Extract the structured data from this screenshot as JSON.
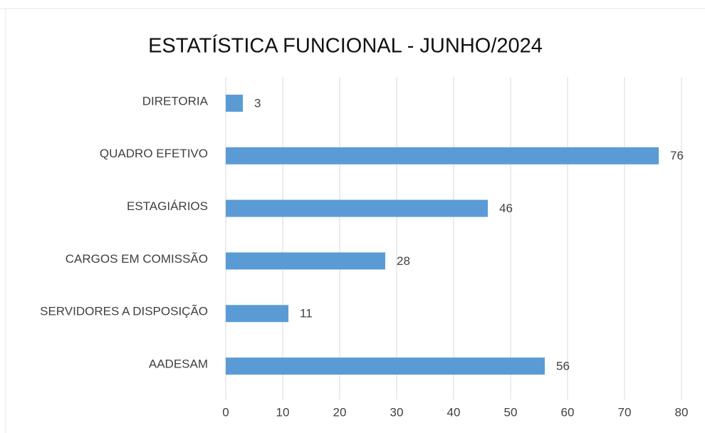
{
  "chart_data": {
    "type": "bar",
    "orientation": "horizontal",
    "title": "ESTATÍSTICA FUNCIONAL - JUNHO/2024",
    "categories": [
      "DIRETORIA",
      "QUADRO EFETIVO",
      "ESTAGIÁRIOS",
      "CARGOS EM COMISSÃO",
      "SERVIDORES A DISPOSIÇÃO",
      "AADESAM"
    ],
    "values": [
      3,
      76,
      46,
      28,
      11,
      56
    ],
    "color": "#5b9bd5",
    "xlim": [
      0,
      80
    ],
    "xticks": [
      0,
      10,
      20,
      30,
      40,
      50,
      60,
      70,
      80
    ],
    "grid": true
  }
}
